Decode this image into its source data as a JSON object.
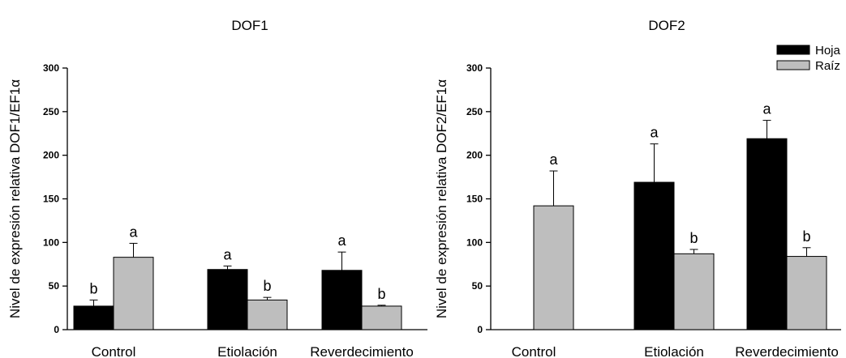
{
  "colors": {
    "hoja": "#000000",
    "raiz": "#bebebe",
    "axis": "#000000"
  },
  "chart_data": [
    {
      "type": "bar",
      "title": "DOF1",
      "xlabel": "",
      "ylabel": "Nivel de expresión relativa DOF1/EF1α",
      "ylim": [
        0,
        300
      ],
      "yticks": [
        "0",
        "50",
        "100",
        "150",
        "200",
        "250",
        "300"
      ],
      "categories": [
        "Control",
        "Etiolación",
        "Reverdecimiento"
      ],
      "series": [
        {
          "name": "Hoja",
          "values": [
            27,
            69,
            68
          ],
          "errors": [
            7,
            4,
            21
          ],
          "labels": [
            "b",
            "a",
            "a"
          ]
        },
        {
          "name": "Raíz",
          "values": [
            83,
            34,
            27
          ],
          "errors": [
            16,
            3,
            1
          ],
          "labels": [
            "a",
            "b",
            "b"
          ]
        }
      ]
    },
    {
      "type": "bar",
      "title": "DOF2",
      "xlabel": "",
      "ylabel": "Nivel de expresión relativa DOF2/EF1α",
      "ylim": [
        0,
        300
      ],
      "yticks": [
        "0",
        "50",
        "100",
        "150",
        "200",
        "250",
        "300"
      ],
      "categories": [
        "Control",
        "Etiolación",
        "Reverdecimiento"
      ],
      "legend": {
        "position": "top-right",
        "entries": [
          "Hoja",
          "Raíz"
        ]
      },
      "series": [
        {
          "name": "Hoja",
          "values": [
            null,
            169,
            219
          ],
          "errors": [
            null,
            44,
            21
          ],
          "labels": [
            "",
            "a",
            "a"
          ]
        },
        {
          "name": "Raíz",
          "values": [
            142,
            87,
            84
          ],
          "errors": [
            40,
            5,
            10
          ],
          "labels": [
            "a",
            "b",
            "b"
          ]
        }
      ]
    }
  ]
}
